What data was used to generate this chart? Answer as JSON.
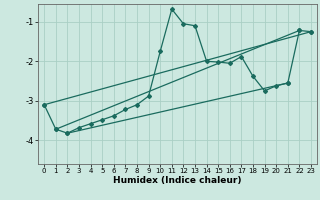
{
  "title": "",
  "xlabel": "Humidex (Indice chaleur)",
  "background_color": "#cce8e0",
  "grid_color": "#aacfc5",
  "line_color": "#1a6b5e",
  "xlim": [
    -0.5,
    23.5
  ],
  "ylim": [
    -4.6,
    -0.55
  ],
  "yticks": [
    -4,
    -3,
    -2,
    -1
  ],
  "xticks": [
    0,
    1,
    2,
    3,
    4,
    5,
    6,
    7,
    8,
    9,
    10,
    11,
    12,
    13,
    14,
    15,
    16,
    17,
    18,
    19,
    20,
    21,
    22,
    23
  ],
  "series": [
    [
      0,
      -3.1
    ],
    [
      1,
      -3.72
    ],
    [
      2,
      -3.82
    ],
    [
      3,
      -3.68
    ],
    [
      4,
      -3.58
    ],
    [
      5,
      -3.48
    ],
    [
      6,
      -3.38
    ],
    [
      7,
      -3.22
    ],
    [
      8,
      -3.1
    ],
    [
      9,
      -2.88
    ],
    [
      10,
      -1.75
    ],
    [
      11,
      -0.68
    ],
    [
      12,
      -1.05
    ],
    [
      13,
      -1.1
    ],
    [
      14,
      -2.0
    ],
    [
      15,
      -2.02
    ],
    [
      16,
      -2.05
    ],
    [
      17,
      -1.88
    ],
    [
      18,
      -2.38
    ],
    [
      19,
      -2.75
    ],
    [
      20,
      -2.62
    ],
    [
      21,
      -2.55
    ],
    [
      22,
      -1.22
    ],
    [
      23,
      -1.25
    ]
  ],
  "line2": [
    [
      0,
      -3.1
    ],
    [
      23,
      -1.25
    ]
  ],
  "line3": [
    [
      1,
      -3.72
    ],
    [
      22,
      -1.22
    ]
  ],
  "line4": [
    [
      2,
      -3.82
    ],
    [
      21,
      -2.55
    ]
  ]
}
